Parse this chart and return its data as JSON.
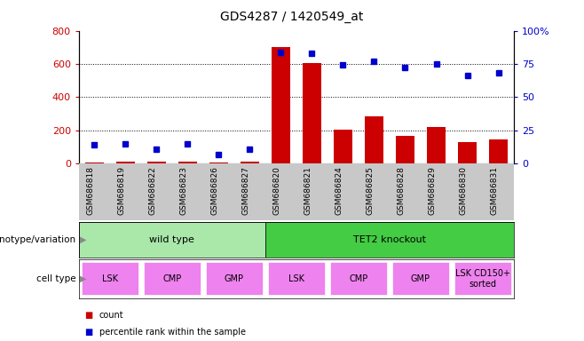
{
  "title": "GDS4287 / 1420549_at",
  "samples": [
    "GSM686818",
    "GSM686819",
    "GSM686822",
    "GSM686823",
    "GSM686826",
    "GSM686827",
    "GSM686820",
    "GSM686821",
    "GSM686824",
    "GSM686825",
    "GSM686828",
    "GSM686829",
    "GSM686830",
    "GSM686831"
  ],
  "counts": [
    8,
    12,
    15,
    10,
    8,
    10,
    700,
    605,
    205,
    285,
    165,
    220,
    130,
    145
  ],
  "percentiles": [
    14,
    15,
    11,
    15,
    7,
    11,
    84,
    83,
    74,
    77,
    72,
    75,
    66,
    68
  ],
  "bar_color": "#cc0000",
  "dot_color": "#0000cc",
  "ylim_left": [
    0,
    800
  ],
  "ylim_right": [
    0,
    100
  ],
  "yticks_left": [
    0,
    200,
    400,
    600,
    800
  ],
  "yticks_right": [
    0,
    25,
    50,
    75,
    100
  ],
  "yticklabels_right": [
    "0",
    "25",
    "50",
    "75",
    "100%"
  ],
  "grid_values": [
    200,
    400,
    600
  ],
  "genotype_groups": [
    {
      "label": "wild type",
      "start": 0,
      "end": 6,
      "color": "#aae8aa"
    },
    {
      "label": "TET2 knockout",
      "start": 6,
      "end": 14,
      "color": "#44cc44"
    }
  ],
  "cell_type_groups": [
    {
      "label": "LSK",
      "start": 0,
      "end": 2
    },
    {
      "label": "CMP",
      "start": 2,
      "end": 4
    },
    {
      "label": "GMP",
      "start": 4,
      "end": 6
    },
    {
      "label": "LSK",
      "start": 6,
      "end": 8
    },
    {
      "label": "CMP",
      "start": 8,
      "end": 10
    },
    {
      "label": "GMP",
      "start": 10,
      "end": 12
    },
    {
      "label": "LSK CD150+\nsorted",
      "start": 12,
      "end": 14
    }
  ],
  "cell_type_color": "#ee82ee",
  "xticklabel_bg": "#c8c8c8",
  "legend_count_color": "#cc0000",
  "legend_pct_color": "#0000cc",
  "legend_count_label": "count",
  "legend_pct_label": "percentile rank within the sample",
  "tick_color_left": "#cc0000",
  "tick_color_right": "#0000cc",
  "genotype_label": "genotype/variation",
  "celltype_label": "cell type"
}
